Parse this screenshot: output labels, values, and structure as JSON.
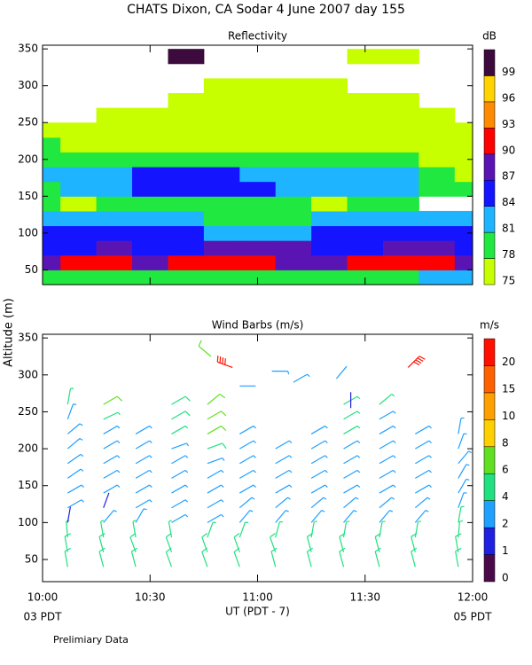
{
  "header": {
    "title": "CHATS Dixon, CA  Sodar    4 June 2007   day 155",
    "y_label": "Altitude (m)",
    "footer": "Prelimiary Data"
  },
  "chart_data": [
    {
      "type": "heatmap",
      "title": "Reflectivity",
      "unit": "dB",
      "xlim": [
        0,
        120
      ],
      "ylim": [
        30,
        355
      ],
      "yticks": [
        50,
        100,
        150,
        200,
        250,
        300,
        350
      ],
      "xticks": [
        {
          "value": 0,
          "label": "10:00"
        },
        {
          "value": 30,
          "label": "10:30"
        },
        {
          "value": 60,
          "label": "11:00"
        },
        {
          "value": 90,
          "label": "11:30"
        },
        {
          "value": 120,
          "label": "12:00"
        }
      ],
      "levels": [
        75,
        78,
        81,
        84,
        87,
        90,
        93,
        96,
        99
      ],
      "colors": [
        "#c8ff00",
        "#20e840",
        "#1eb4ff",
        "#1414ff",
        "#5a14b4",
        "#ff0000",
        "#ff8c00",
        "#ffd200",
        "#3c0a3c"
      ],
      "x": [
        0,
        10,
        20,
        30,
        40,
        50,
        60,
        70,
        80,
        90,
        100,
        110,
        120
      ],
      "y": [
        40,
        60,
        80,
        100,
        120,
        140,
        160,
        180,
        200,
        220,
        240,
        260,
        280,
        300,
        320,
        340
      ],
      "z": [
        [
          79,
          79,
          79,
          78,
          78,
          78,
          78,
          78,
          79,
          79,
          79,
          81,
          81
        ],
        [
          88,
          90,
          90,
          88,
          91,
          91,
          91,
          88,
          89,
          91,
          90,
          90,
          88
        ],
        [
          86,
          86,
          87,
          86,
          86,
          87,
          87,
          87,
          86,
          86,
          87,
          87,
          86
        ],
        [
          84,
          84,
          85,
          84,
          84,
          83,
          82,
          83,
          84,
          85,
          85,
          84,
          84
        ],
        [
          81,
          81,
          82,
          82,
          81,
          79,
          79,
          80,
          81,
          82,
          82,
          81,
          81
        ],
        [
          78,
          76,
          78,
          78,
          79,
          78,
          79,
          78,
          77,
          78,
          78,
          72,
          72
        ],
        [
          79,
          81,
          82,
          84,
          85,
          85,
          84,
          81,
          81,
          82,
          82,
          79,
          78
        ],
        [
          81,
          81,
          82,
          85,
          85,
          85,
          82,
          82,
          82,
          82,
          81,
          79,
          77
        ],
        [
          79,
          79,
          79,
          80,
          80,
          79,
          79,
          78,
          79,
          79,
          79,
          77,
          76
        ],
        [
          78,
          76,
          76,
          77,
          77,
          77,
          76,
          76,
          76,
          76,
          76,
          76,
          76
        ],
        [
          76,
          76,
          76,
          76,
          76,
          76,
          76,
          76,
          76,
          76,
          76,
          76,
          76
        ],
        [
          72,
          72,
          76,
          76,
          76,
          76,
          76,
          76,
          76,
          76,
          76,
          76,
          72
        ],
        [
          72,
          72,
          72,
          72,
          76,
          76,
          76,
          76,
          76,
          76,
          76,
          72,
          72
        ],
        [
          72,
          72,
          72,
          72,
          72,
          76,
          76,
          76,
          76,
          72,
          72,
          72,
          72
        ],
        [
          72,
          72,
          72,
          72,
          72,
          72,
          72,
          72,
          72,
          72,
          72,
          72,
          72
        ],
        [
          72,
          72,
          72,
          72,
          99,
          72,
          72,
          72,
          72,
          76,
          76,
          72,
          72
        ]
      ]
    },
    {
      "type": "barbs",
      "title": "Wind Barbs (m/s)",
      "unit": "m/s",
      "xlabel": "UT  (PDT - 7)",
      "xlim": [
        0,
        120
      ],
      "ylim": [
        20,
        355
      ],
      "yticks": [
        50,
        100,
        150,
        200,
        250,
        300,
        350
      ],
      "xticks": [
        {
          "value": 0,
          "label": "10:00"
        },
        {
          "value": 30,
          "label": "10:30"
        },
        {
          "value": 60,
          "label": "11:00"
        },
        {
          "value": 90,
          "label": "11:30"
        },
        {
          "value": 120,
          "label": "12:00"
        }
      ],
      "xsubticks": [
        {
          "value": 0,
          "label": "03 PDT"
        },
        {
          "value": 120,
          "label": "05 PDT"
        }
      ],
      "levels": [
        0,
        1,
        2,
        4,
        6,
        8,
        10,
        15,
        20
      ],
      "colors": [
        "#4a0a4a",
        "#2020e0",
        "#20a0ff",
        "#20e080",
        "#60e020",
        "#ffd000",
        "#ffa000",
        "#ff6000",
        "#ff1000"
      ],
      "columns": [
        {
          "x": 7,
          "y": [
            40,
            60,
            80,
            100,
            120,
            140,
            160,
            180,
            200,
            220,
            240,
            260
          ],
          "speed": [
            5,
            5,
            4.5,
            1,
            3,
            3,
            3,
            3,
            3,
            3,
            3.5,
            4
          ],
          "direction": [
            350,
            350,
            355,
            10,
            60,
            60,
            55,
            55,
            50,
            50,
            20,
            10
          ]
        },
        {
          "x": 17,
          "y": [
            40,
            60,
            80,
            100,
            120,
            140,
            160,
            180,
            200,
            220,
            240,
            260
          ],
          "speed": [
            5,
            5,
            4,
            3,
            1.5,
            3,
            3,
            3,
            3,
            3,
            4,
            6
          ],
          "direction": [
            345,
            345,
            350,
            40,
            20,
            60,
            60,
            60,
            60,
            60,
            65,
            60
          ]
        },
        {
          "x": 26,
          "y": [
            40,
            60,
            80,
            100,
            120,
            140,
            160,
            180,
            200,
            220
          ],
          "speed": [
            5,
            5,
            4,
            3,
            3,
            3,
            3,
            3,
            3,
            3
          ],
          "direction": [
            345,
            340,
            350,
            30,
            60,
            60,
            60,
            60,
            60,
            60
          ]
        },
        {
          "x": 36,
          "y": [
            40,
            60,
            80,
            100,
            120,
            140,
            160,
            180,
            200,
            220,
            240,
            260
          ],
          "speed": [
            5,
            5,
            4,
            3,
            3,
            3,
            3,
            3,
            3.5,
            4,
            5,
            5
          ],
          "direction": [
            340,
            340,
            350,
            60,
            60,
            60,
            60,
            60,
            70,
            60,
            60,
            60
          ]
        },
        {
          "x": 46,
          "y": [
            40,
            60,
            80,
            100,
            120,
            140,
            160,
            180,
            200,
            220,
            240,
            260
          ],
          "speed": [
            5,
            5,
            4,
            3,
            3,
            3,
            3,
            3,
            5,
            6,
            6,
            6
          ],
          "direction": [
            340,
            340,
            20,
            60,
            60,
            60,
            60,
            70,
            70,
            60,
            60,
            50
          ]
        },
        {
          "x": 55,
          "y": [
            40,
            60,
            80,
            100,
            120,
            140,
            160,
            180,
            200,
            220
          ],
          "speed": [
            5,
            5,
            4,
            3,
            3,
            3,
            3,
            3,
            3,
            3
          ],
          "direction": [
            340,
            340,
            20,
            40,
            50,
            60,
            60,
            60,
            60,
            60
          ]
        },
        {
          "x": 65,
          "y": [
            40,
            60,
            80,
            100,
            120,
            140,
            160,
            180,
            200
          ],
          "speed": [
            5,
            5,
            4,
            3,
            3,
            3,
            3,
            3,
            3.5
          ],
          "direction": [
            345,
            340,
            15,
            40,
            50,
            60,
            60,
            60,
            60
          ]
        },
        {
          "x": 75,
          "y": [
            40,
            60,
            80,
            100,
            120,
            140,
            160,
            180,
            200,
            220
          ],
          "speed": [
            5,
            5,
            4,
            3,
            3,
            3,
            3,
            3,
            3,
            3
          ],
          "direction": [
            345,
            345,
            10,
            40,
            50,
            60,
            60,
            60,
            60,
            60
          ]
        },
        {
          "x": 84,
          "y": [
            40,
            60,
            80,
            100,
            120,
            140,
            160,
            180,
            200,
            220,
            240,
            260
          ],
          "speed": [
            5,
            5,
            4,
            3,
            3,
            3,
            3,
            3,
            3,
            4,
            4,
            4
          ],
          "direction": [
            345,
            345,
            10,
            40,
            50,
            60,
            60,
            60,
            60,
            60,
            60,
            60
          ]
        },
        {
          "x": 94,
          "y": [
            40,
            60,
            80,
            100,
            120,
            140,
            160,
            180,
            200,
            220,
            240,
            260
          ],
          "speed": [
            5,
            5,
            4,
            3,
            3,
            3,
            3,
            3,
            3,
            3,
            3.5,
            4
          ],
          "direction": [
            345,
            345,
            10,
            40,
            50,
            60,
            60,
            60,
            60,
            60,
            60,
            50
          ]
        },
        {
          "x": 104,
          "y": [
            40,
            60,
            80,
            100,
            120,
            140,
            160,
            180,
            200,
            220
          ],
          "speed": [
            5,
            5,
            4,
            3,
            3,
            3,
            3,
            3,
            3,
            3
          ],
          "direction": [
            345,
            345,
            10,
            40,
            50,
            60,
            60,
            60,
            60,
            60
          ]
        },
        {
          "x": 116,
          "y": [
            40,
            60,
            80,
            100,
            120,
            140,
            160,
            180,
            200,
            220
          ],
          "speed": [
            5,
            5,
            4,
            4,
            3,
            3,
            3,
            3,
            3,
            3
          ],
          "direction": [
            350,
            350,
            5,
            10,
            20,
            30,
            30,
            40,
            20,
            10
          ]
        }
      ],
      "upper": {
        "x": [
          47,
          53,
          55,
          64,
          70,
          82,
          86,
          102
        ],
        "y": [
          325,
          310,
          285,
          305,
          290,
          295,
          255,
          310
        ],
        "speed": [
          6,
          22,
          2,
          2.5,
          2.5,
          2,
          1,
          22
        ],
        "direction": [
          310,
          290,
          90,
          90,
          60,
          40,
          0,
          45
        ]
      }
    }
  ]
}
